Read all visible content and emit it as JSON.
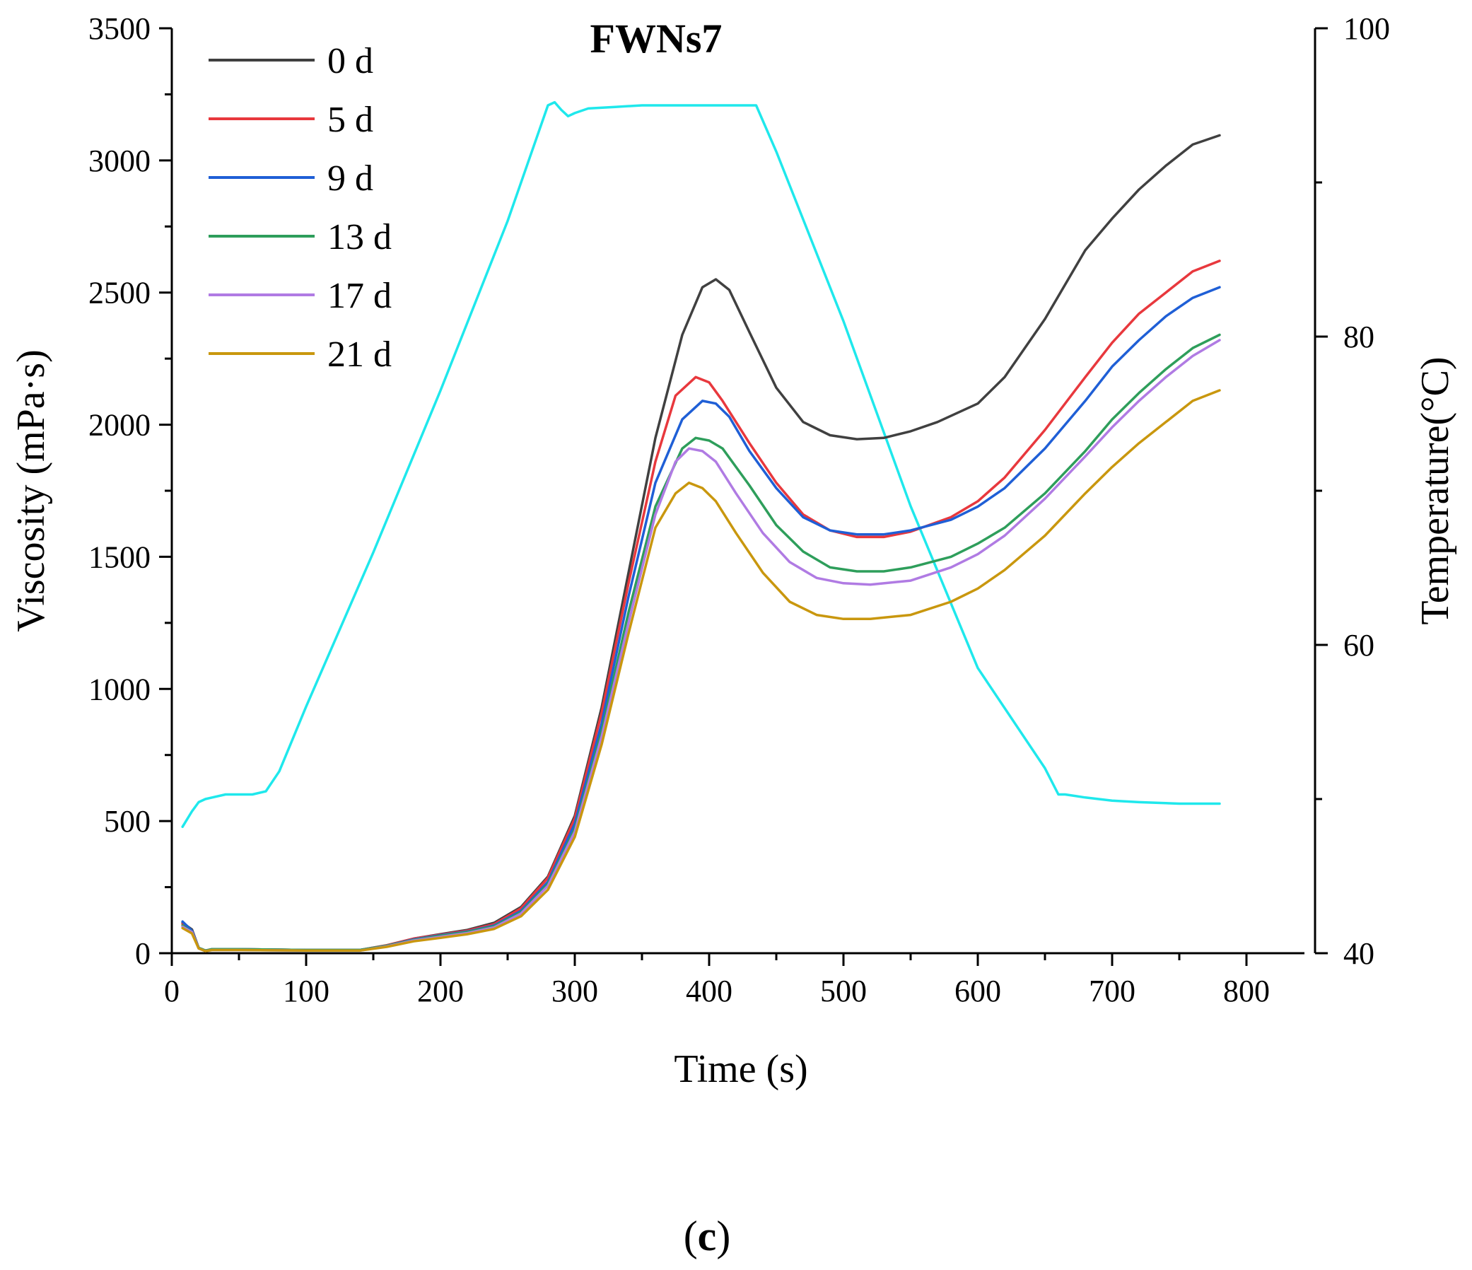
{
  "chart_data": {
    "type": "line",
    "title": "FWNs7",
    "panel_label": "(c)",
    "panel_label_parts": {
      "open": "(",
      "letter": "c",
      "close": ")"
    },
    "xlabel": "Time (s)",
    "ylabel": "Viscosity  (mPa·s)",
    "y2label": "Temperature(°C)",
    "xlim": [
      0,
      850
    ],
    "ylim": [
      0,
      3500
    ],
    "y2lim": [
      40,
      100
    ],
    "x_ticks": [
      0,
      100,
      200,
      300,
      400,
      500,
      600,
      700,
      800
    ],
    "x_tick_labels": [
      "0",
      "100",
      "200",
      "300",
      "400",
      "500",
      "600",
      "700",
      "800"
    ],
    "y_ticks": [
      0,
      500,
      1000,
      1500,
      2000,
      2500,
      3000,
      3500
    ],
    "y_tick_labels": [
      "0",
      "500",
      "1000",
      "1500",
      "2000",
      "2500",
      "3000",
      "3500"
    ],
    "y2_ticks": [
      40,
      60,
      80,
      100
    ],
    "y2_tick_labels": [
      "40",
      "60",
      "80",
      "100"
    ],
    "legend_position": "top-left",
    "series": [
      {
        "name": "0 d",
        "color": "#404040",
        "axis": "left",
        "x": [
          8,
          15,
          20,
          25,
          30,
          50,
          100,
          140,
          160,
          180,
          200,
          220,
          240,
          260,
          280,
          300,
          320,
          340,
          360,
          380,
          395,
          405,
          415,
          430,
          450,
          470,
          490,
          510,
          530,
          550,
          570,
          600,
          620,
          650,
          680,
          700,
          720,
          740,
          760,
          780
        ],
        "y": [
          115,
          90,
          20,
          10,
          15,
          15,
          12,
          12,
          30,
          55,
          72,
          88,
          115,
          175,
          290,
          520,
          930,
          1440,
          1950,
          2340,
          2520,
          2550,
          2510,
          2350,
          2140,
          2010,
          1960,
          1945,
          1950,
          1975,
          2010,
          2080,
          2180,
          2400,
          2660,
          2780,
          2890,
          2980,
          3060,
          3095
        ]
      },
      {
        "name": "5 d",
        "color": "#e8383d",
        "axis": "left",
        "x": [
          8,
          15,
          20,
          25,
          30,
          50,
          100,
          140,
          160,
          180,
          200,
          220,
          240,
          260,
          280,
          300,
          320,
          340,
          360,
          375,
          390,
          400,
          410,
          430,
          450,
          470,
          490,
          510,
          530,
          550,
          580,
          600,
          620,
          650,
          680,
          700,
          720,
          740,
          760,
          780
        ],
        "y": [
          110,
          85,
          20,
          10,
          15,
          15,
          12,
          12,
          30,
          55,
          70,
          85,
          110,
          170,
          285,
          510,
          910,
          1400,
          1860,
          2110,
          2180,
          2160,
          2090,
          1930,
          1780,
          1660,
          1600,
          1575,
          1575,
          1595,
          1650,
          1710,
          1800,
          1980,
          2180,
          2310,
          2420,
          2500,
          2580,
          2620
        ]
      },
      {
        "name": "9 d",
        "color": "#1f5fd6",
        "axis": "left",
        "x": [
          8,
          15,
          20,
          25,
          30,
          50,
          100,
          140,
          160,
          180,
          200,
          220,
          240,
          260,
          280,
          300,
          320,
          340,
          360,
          380,
          395,
          405,
          415,
          430,
          450,
          470,
          490,
          510,
          530,
          550,
          580,
          600,
          620,
          650,
          680,
          700,
          720,
          740,
          760,
          780
        ],
        "y": [
          120,
          85,
          20,
          10,
          15,
          15,
          12,
          12,
          28,
          52,
          68,
          82,
          105,
          160,
          270,
          490,
          870,
          1350,
          1780,
          2020,
          2090,
          2080,
          2030,
          1900,
          1760,
          1650,
          1600,
          1585,
          1585,
          1600,
          1640,
          1690,
          1760,
          1910,
          2090,
          2220,
          2320,
          2410,
          2480,
          2520
        ]
      },
      {
        "name": "13 d",
        "color": "#2e9e5b",
        "axis": "left",
        "x": [
          8,
          15,
          20,
          25,
          30,
          50,
          100,
          140,
          160,
          180,
          200,
          220,
          240,
          260,
          280,
          300,
          320,
          340,
          360,
          380,
          390,
          400,
          410,
          430,
          450,
          470,
          490,
          510,
          530,
          550,
          580,
          600,
          620,
          650,
          680,
          700,
          720,
          740,
          760,
          780
        ],
        "y": [
          105,
          80,
          20,
          10,
          15,
          15,
          12,
          12,
          28,
          50,
          66,
          80,
          102,
          155,
          262,
          470,
          840,
          1290,
          1690,
          1910,
          1950,
          1940,
          1910,
          1770,
          1620,
          1520,
          1460,
          1445,
          1445,
          1460,
          1500,
          1550,
          1610,
          1740,
          1900,
          2020,
          2120,
          2210,
          2290,
          2340
        ]
      },
      {
        "name": "17 d",
        "color": "#b07be3",
        "axis": "left",
        "x": [
          8,
          15,
          20,
          25,
          30,
          50,
          100,
          140,
          160,
          180,
          200,
          220,
          240,
          260,
          280,
          300,
          320,
          340,
          360,
          375,
          385,
          395,
          405,
          420,
          440,
          460,
          480,
          500,
          520,
          550,
          580,
          600,
          620,
          650,
          680,
          700,
          720,
          740,
          760,
          780
        ],
        "y": [
          100,
          80,
          18,
          8,
          12,
          12,
          10,
          10,
          26,
          48,
          62,
          76,
          98,
          150,
          255,
          460,
          820,
          1250,
          1660,
          1860,
          1910,
          1900,
          1860,
          1740,
          1590,
          1480,
          1420,
          1400,
          1395,
          1410,
          1460,
          1510,
          1580,
          1720,
          1880,
          1990,
          2090,
          2180,
          2260,
          2320
        ]
      },
      {
        "name": "21 d",
        "color": "#c9970e",
        "axis": "left",
        "x": [
          8,
          15,
          20,
          25,
          30,
          50,
          100,
          140,
          160,
          180,
          200,
          220,
          240,
          260,
          280,
          300,
          320,
          340,
          360,
          375,
          385,
          395,
          405,
          420,
          440,
          460,
          480,
          500,
          520,
          550,
          580,
          600,
          620,
          650,
          680,
          700,
          720,
          740,
          760,
          780
        ],
        "y": [
          95,
          75,
          18,
          8,
          12,
          12,
          10,
          10,
          24,
          45,
          58,
          72,
          92,
          140,
          240,
          440,
          790,
          1210,
          1610,
          1740,
          1780,
          1760,
          1710,
          1590,
          1440,
          1330,
          1280,
          1265,
          1265,
          1280,
          1330,
          1380,
          1450,
          1580,
          1740,
          1840,
          1930,
          2010,
          2090,
          2130
        ]
      },
      {
        "name": "Temperature",
        "color": "#1fe8ec",
        "axis": "right",
        "x": [
          8,
          15,
          20,
          25,
          30,
          40,
          50,
          60,
          70,
          80,
          100,
          150,
          200,
          250,
          280,
          285,
          290,
          295,
          300,
          310,
          330,
          350,
          400,
          435,
          450,
          500,
          550,
          600,
          650,
          660,
          665,
          680,
          700,
          720,
          750,
          780
        ],
        "y": [
          48.2,
          49.2,
          49.8,
          50.0,
          50.1,
          50.3,
          50.3,
          50.3,
          50.5,
          51.8,
          56.0,
          66.0,
          76.5,
          87.5,
          95.0,
          95.2,
          94.7,
          94.3,
          94.5,
          94.8,
          94.9,
          95.0,
          95.0,
          95.0,
          92.0,
          81.0,
          69.0,
          58.5,
          52.0,
          50.3,
          50.3,
          50.1,
          49.9,
          49.8,
          49.7,
          49.7
        ]
      }
    ]
  }
}
